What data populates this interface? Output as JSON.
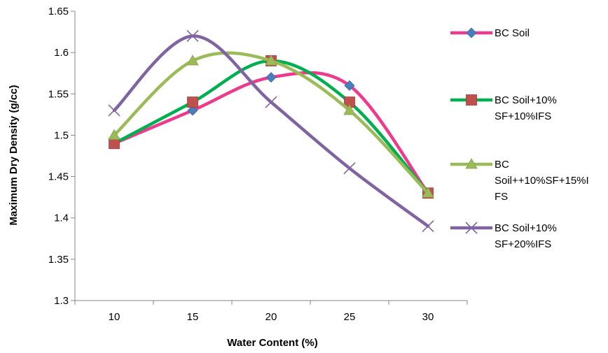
{
  "chart_data": {
    "type": "line",
    "title": "",
    "xlabel": "Water Content (%)",
    "ylabel": "Maximum Dry Density (g/cc)",
    "categories": [
      "10",
      "15",
      "20",
      "25",
      "30"
    ],
    "ylim": [
      1.3,
      1.65
    ],
    "yticks": [
      "1.3",
      "1.35",
      "1.4",
      "1.45",
      "1.5",
      "1.55",
      "1.6",
      "1.65"
    ],
    "grid": false,
    "legend_position": "right",
    "smooth": true,
    "series": [
      {
        "name": "BC Soil",
        "legend_lines": [
          "BC Soil"
        ],
        "values": [
          1.49,
          1.53,
          1.57,
          1.56,
          1.43
        ],
        "line_color": "#ee3a8c",
        "marker": "diamond",
        "marker_color": "#4a7ebb"
      },
      {
        "name": "BC Soil+10% SF+10%IFS",
        "legend_lines": [
          "BC Soil+10%",
          "SF+10%IFS"
        ],
        "values": [
          1.49,
          1.54,
          1.59,
          1.54,
          1.43
        ],
        "line_color": "#00b050",
        "marker": "square",
        "marker_color": "#c0504d"
      },
      {
        "name": "BC Soil++10%SF+15%IFS",
        "legend_lines": [
          "BC",
          "Soil++10%SF+15%I",
          "FS"
        ],
        "values": [
          1.5,
          1.59,
          1.59,
          1.53,
          1.43
        ],
        "line_color": "#9bbb59",
        "marker": "triangle",
        "marker_color": "#9bbb59"
      },
      {
        "name": "BC Soil+10% SF+20%IFS",
        "legend_lines": [
          "BC Soil+10%",
          "SF+20%IFS"
        ],
        "values": [
          1.53,
          1.62,
          1.54,
          1.46,
          1.39
        ],
        "line_color": "#8064a2",
        "marker": "x",
        "marker_color": "#8064a2"
      }
    ]
  }
}
